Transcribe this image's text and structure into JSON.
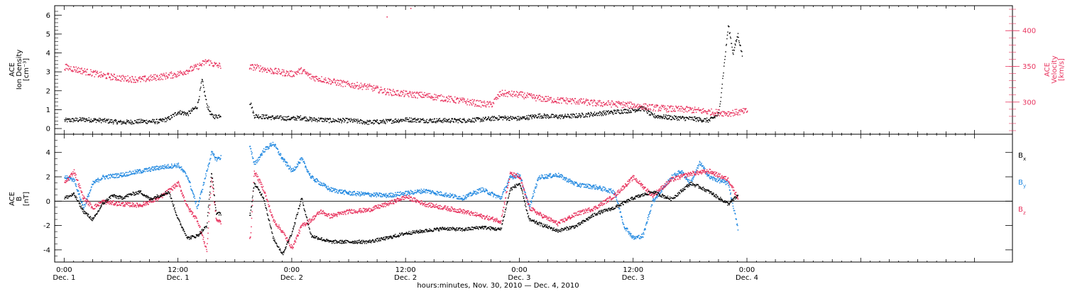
{
  "footer": {
    "xlabel": "hours:minutes, Nov. 30, 2010 — Dec. 4, 2010"
  },
  "colors": {
    "black": "#000000",
    "pink": "#e8335e",
    "blue": "#1f87e0",
    "frame": "#000000"
  },
  "chart_data": [
    {
      "type": "scatter",
      "panel": "top",
      "y_left_label_lines": [
        "ACE",
        "Ion Density",
        "[cm⁻³]"
      ],
      "y_right_label_lines": [
        "ACE",
        "Velocity",
        "[km/s]"
      ],
      "ylim_left": [
        -0.3,
        6.5
      ],
      "ylim_right": [
        255,
        435
      ],
      "yticks_left": [
        0,
        1,
        2,
        3,
        4,
        5,
        6
      ],
      "yticks_right": [
        300,
        350,
        400
      ],
      "x_hours_range": [
        -1,
        100
      ],
      "xticks": [
        {
          "h": 0,
          "time": "0:00",
          "day": "Dec. 1"
        },
        {
          "h": 12,
          "time": "12:00",
          "day": "Dec. 1"
        },
        {
          "h": 24,
          "time": "0:00",
          "day": "Dec. 2"
        },
        {
          "h": 36,
          "time": "12:00",
          "day": "Dec. 2"
        },
        {
          "h": 48,
          "time": "0:00",
          "day": "Dec. 3"
        },
        {
          "h": 60,
          "time": "12:00",
          "day": "Dec. 3"
        },
        {
          "h": 72,
          "time": "0:00",
          "day": "Dec. 4"
        }
      ],
      "gaps_hours": [
        [
          16.5,
          19.5
        ]
      ],
      "series": [
        {
          "name": "Ion Density",
          "axis": "left",
          "color": "black",
          "points": [
            [
              0,
              0.45
            ],
            [
              2,
              0.5
            ],
            [
              4,
              0.45
            ],
            [
              6,
              0.35
            ],
            [
              8,
              0.4
            ],
            [
              10,
              0.4
            ],
            [
              11,
              0.55
            ],
            [
              12,
              0.9
            ],
            [
              13,
              0.8
            ],
            [
              14,
              1.2
            ],
            [
              14.5,
              2.6
            ],
            [
              15,
              1.3
            ],
            [
              15.5,
              0.7
            ],
            [
              16,
              0.65
            ],
            [
              19.6,
              1.4
            ],
            [
              20,
              0.7
            ],
            [
              22,
              0.6
            ],
            [
              24,
              0.55
            ],
            [
              25,
              0.6
            ],
            [
              26,
              0.5
            ],
            [
              27,
              0.5
            ],
            [
              28,
              0.45
            ],
            [
              30,
              0.45
            ],
            [
              32,
              0.35
            ],
            [
              34,
              0.4
            ],
            [
              36,
              0.5
            ],
            [
              38,
              0.45
            ],
            [
              40,
              0.45
            ],
            [
              42,
              0.45
            ],
            [
              44,
              0.5
            ],
            [
              46,
              0.6
            ],
            [
              48,
              0.55
            ],
            [
              50,
              0.7
            ],
            [
              52,
              0.65
            ],
            [
              54,
              0.7
            ],
            [
              56,
              0.8
            ],
            [
              58,
              0.9
            ],
            [
              60,
              1.0
            ],
            [
              61,
              1.1
            ],
            [
              62,
              0.7
            ],
            [
              64,
              0.6
            ],
            [
              66,
              0.55
            ],
            [
              68,
              0.45
            ],
            [
              69,
              0.8
            ],
            [
              70,
              5.5
            ],
            [
              70.5,
              4.0
            ],
            [
              71,
              5.0
            ],
            [
              71.5,
              3.8
            ]
          ]
        },
        {
          "name": "Velocity",
          "axis": "right",
          "color": "pink",
          "points": [
            [
              0,
              350
            ],
            [
              2,
              344
            ],
            [
              4,
              338
            ],
            [
              6,
              334
            ],
            [
              8,
              332
            ],
            [
              10,
              336
            ],
            [
              12,
              340
            ],
            [
              14,
              350
            ],
            [
              15,
              358
            ],
            [
              16,
              352
            ],
            [
              19.6,
              349
            ],
            [
              20,
              350
            ],
            [
              22,
              344
            ],
            [
              24,
              340
            ],
            [
              25,
              345
            ],
            [
              26,
              336
            ],
            [
              28,
              330
            ],
            [
              30,
              325
            ],
            [
              32,
              322
            ],
            [
              34,
              315
            ],
            [
              36,
              312
            ],
            [
              38,
              310
            ],
            [
              40,
              306
            ],
            [
              42,
              302
            ],
            [
              44,
              298
            ],
            [
              45,
              297
            ],
            [
              46,
              313
            ],
            [
              48,
              311
            ],
            [
              50,
              306
            ],
            [
              52,
              303
            ],
            [
              54,
              302
            ],
            [
              56,
              299
            ],
            [
              58,
              298
            ],
            [
              60,
              296
            ],
            [
              62,
              293
            ],
            [
              64,
              291
            ],
            [
              66,
              290
            ],
            [
              68,
              287
            ],
            [
              70,
              285
            ],
            [
              72,
              288
            ]
          ]
        }
      ]
    },
    {
      "type": "scatter",
      "panel": "bottom",
      "y_left_label_lines": [
        "ACE",
        "B",
        "[nT]"
      ],
      "ylim": [
        -5,
        5.5
      ],
      "yticks": [
        -4,
        -2,
        0,
        2,
        4
      ],
      "x_hours_range": [
        -1,
        100
      ],
      "zero_line": true,
      "series": [
        {
          "name": "Bx",
          "color": "black",
          "points": [
            [
              0,
              0.3
            ],
            [
              1,
              0.6
            ],
            [
              2,
              -0.8
            ],
            [
              3,
              -1.5
            ],
            [
              4,
              -0.2
            ],
            [
              5,
              0.5
            ],
            [
              6,
              0.3
            ],
            [
              7,
              0.6
            ],
            [
              8,
              0.8
            ],
            [
              9,
              0.2
            ],
            [
              10,
              0.5
            ],
            [
              11,
              0.8
            ],
            [
              12,
              -1.5
            ],
            [
              13,
              -3.0
            ],
            [
              14,
              -2.8
            ],
            [
              15,
              -2.0
            ],
            [
              15.5,
              2.5
            ],
            [
              16,
              -1.0
            ],
            [
              19.6,
              -1.0
            ],
            [
              20,
              1.5
            ],
            [
              21,
              0.3
            ],
            [
              22,
              -3.0
            ],
            [
              23,
              -4.3
            ],
            [
              24,
              -2.5
            ],
            [
              25,
              0.3
            ],
            [
              26,
              -2.8
            ],
            [
              28,
              -3.3
            ],
            [
              30,
              -3.3
            ],
            [
              32,
              -3.3
            ],
            [
              34,
              -3.0
            ],
            [
              36,
              -2.6
            ],
            [
              38,
              -2.4
            ],
            [
              40,
              -2.2
            ],
            [
              42,
              -2.3
            ],
            [
              44,
              -2.1
            ],
            [
              46,
              -2.3
            ],
            [
              47,
              1.0
            ],
            [
              48,
              1.5
            ],
            [
              49,
              -1.5
            ],
            [
              50,
              -1.8
            ],
            [
              52,
              -2.4
            ],
            [
              54,
              -2.0
            ],
            [
              56,
              -1.0
            ],
            [
              58,
              -0.5
            ],
            [
              60,
              0.3
            ],
            [
              62,
              0.8
            ],
            [
              64,
              0.2
            ],
            [
              66,
              1.5
            ],
            [
              67,
              1.2
            ],
            [
              68,
              0.8
            ],
            [
              69,
              0.3
            ],
            [
              70,
              -0.2
            ],
            [
              71,
              0.5
            ]
          ]
        },
        {
          "name": "By",
          "color": "blue",
          "points": [
            [
              0,
              2.0
            ],
            [
              1,
              1.8
            ],
            [
              2,
              -0.5
            ],
            [
              3,
              1.5
            ],
            [
              4,
              2.0
            ],
            [
              6,
              2.2
            ],
            [
              8,
              2.5
            ],
            [
              10,
              2.8
            ],
            [
              12,
              3.0
            ],
            [
              13,
              2.0
            ],
            [
              14,
              -0.5
            ],
            [
              15,
              2.5
            ],
            [
              15.5,
              4.0
            ],
            [
              16,
              3.5
            ],
            [
              19.6,
              4.5
            ],
            [
              20,
              3.0
            ],
            [
              21,
              4.2
            ],
            [
              22,
              4.8
            ],
            [
              23,
              3.5
            ],
            [
              24,
              2.5
            ],
            [
              25,
              3.5
            ],
            [
              26,
              2.0
            ],
            [
              28,
              1.0
            ],
            [
              30,
              0.7
            ],
            [
              32,
              0.6
            ],
            [
              34,
              0.5
            ],
            [
              36,
              0.7
            ],
            [
              38,
              0.9
            ],
            [
              40,
              0.6
            ],
            [
              42,
              0.3
            ],
            [
              44,
              1.0
            ],
            [
              46,
              0.3
            ],
            [
              47,
              2.0
            ],
            [
              48,
              2.2
            ],
            [
              49,
              -0.5
            ],
            [
              50,
              2.0
            ],
            [
              52,
              2.2
            ],
            [
              54,
              1.4
            ],
            [
              56,
              1.2
            ],
            [
              58,
              0.8
            ],
            [
              59,
              -2.0
            ],
            [
              60,
              -3.0
            ],
            [
              61,
              -2.8
            ],
            [
              62,
              0
            ],
            [
              64,
              2.0
            ],
            [
              65,
              2.5
            ],
            [
              66,
              1.5
            ],
            [
              67,
              3.2
            ],
            [
              68,
              2.0
            ],
            [
              70,
              1.5
            ],
            [
              71,
              -2.2
            ]
          ]
        },
        {
          "name": "Bz",
          "color": "pink",
          "points": [
            [
              0,
              1.5
            ],
            [
              1,
              2.5
            ],
            [
              2,
              0.3
            ],
            [
              3,
              -0.5
            ],
            [
              4,
              0.0
            ],
            [
              6,
              -0.2
            ],
            [
              8,
              -0.3
            ],
            [
              10,
              0.3
            ],
            [
              12,
              1.5
            ],
            [
              13,
              -0.5
            ],
            [
              14,
              -1.5
            ],
            [
              15,
              -4.0
            ],
            [
              15.5,
              2.0
            ],
            [
              16,
              -1.5
            ],
            [
              19.6,
              -3.0
            ],
            [
              20,
              2.5
            ],
            [
              21,
              1.0
            ],
            [
              22,
              -1.5
            ],
            [
              23,
              -2.5
            ],
            [
              24,
              -3.8
            ],
            [
              25,
              -2.0
            ],
            [
              26,
              -1.5
            ],
            [
              27,
              -0.8
            ],
            [
              28,
              -1.2
            ],
            [
              30,
              -0.8
            ],
            [
              32,
              -0.7
            ],
            [
              34,
              -0.2
            ],
            [
              36,
              0.4
            ],
            [
              38,
              -0.2
            ],
            [
              40,
              -0.5
            ],
            [
              42,
              -0.8
            ],
            [
              44,
              -1.2
            ],
            [
              46,
              -1.6
            ],
            [
              47,
              2.3
            ],
            [
              48,
              2.0
            ],
            [
              49,
              -0.5
            ],
            [
              50,
              -1.0
            ],
            [
              52,
              -1.8
            ],
            [
              54,
              -1.0
            ],
            [
              56,
              -0.5
            ],
            [
              58,
              0.5
            ],
            [
              60,
              2.0
            ],
            [
              62,
              0.5
            ],
            [
              64,
              1.8
            ],
            [
              66,
              2.3
            ],
            [
              68,
              2.5
            ],
            [
              70,
              1.8
            ],
            [
              71,
              0.3
            ]
          ]
        }
      ],
      "legend_right": [
        {
          "label": "B",
          "sub": "x",
          "color": "black"
        },
        {
          "label": "B",
          "sub": "y",
          "color": "blue"
        },
        {
          "label": "B",
          "sub": "z",
          "color": "pink"
        }
      ]
    }
  ]
}
